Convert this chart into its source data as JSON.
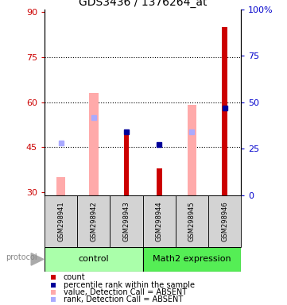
{
  "title": "GDS3436 / 1376264_at",
  "samples": [
    "GSM298941",
    "GSM298942",
    "GSM298943",
    "GSM298944",
    "GSM298945",
    "GSM298946"
  ],
  "ylim_left": [
    29,
    91
  ],
  "ylim_right": [
    0,
    100
  ],
  "yticks_left": [
    30,
    45,
    60,
    75,
    90
  ],
  "yticks_right": [
    0,
    25,
    50,
    75,
    100
  ],
  "ytick_labels_right": [
    "0",
    "25",
    "50",
    "75",
    "100%"
  ],
  "count_values": [
    null,
    null,
    51.0,
    38.0,
    null,
    85.0
  ],
  "percentile_rank_values": [
    null,
    null,
    50.0,
    46.0,
    null,
    58.0
  ],
  "absent_value_bars": [
    35.0,
    63.0,
    null,
    null,
    59.0,
    null
  ],
  "absent_rank_dots": [
    46.5,
    55.0,
    null,
    null,
    50.0,
    null
  ],
  "count_color": "#cc0000",
  "percentile_color": "#000099",
  "absent_value_color": "#ffaaaa",
  "absent_rank_color": "#aaaaff",
  "control_color": "#aaffaa",
  "math2_color": "#55ee55",
  "bg_color": "#ffffff",
  "label_color_left": "#cc0000",
  "label_color_right": "#0000cc",
  "protocol_label": "protocol",
  "grid_yticks": [
    45,
    60,
    75
  ]
}
